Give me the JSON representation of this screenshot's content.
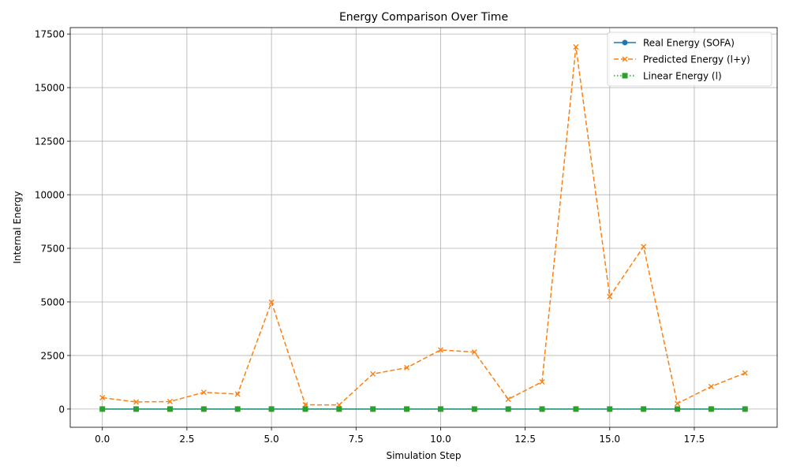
{
  "chart_data": {
    "type": "line",
    "title": "Energy Comparison Over Time",
    "xlabel": "Simulation Step",
    "ylabel": "Internal Energy",
    "xlim": [
      -0.95,
      19.95
    ],
    "ylim": [
      -850,
      17800
    ],
    "xticks": [
      0.0,
      2.5,
      5.0,
      7.5,
      10.0,
      12.5,
      15.0,
      17.5
    ],
    "xtick_labels": [
      "0.0",
      "2.5",
      "5.0",
      "7.5",
      "10.0",
      "12.5",
      "15.0",
      "17.5"
    ],
    "yticks": [
      0,
      2500,
      5000,
      7500,
      10000,
      12500,
      15000,
      17500
    ],
    "ytick_labels": [
      "0",
      "2500",
      "5000",
      "7500",
      "10000",
      "12500",
      "15000",
      "17500"
    ],
    "grid": true,
    "legend_position": "upper right",
    "x": [
      0,
      1,
      2,
      3,
      4,
      5,
      6,
      7,
      8,
      9,
      10,
      11,
      12,
      13,
      14,
      15,
      16,
      17,
      18,
      19
    ],
    "series": [
      {
        "name": "Real Energy (SOFA)",
        "color": "#1f77b4",
        "linestyle": "solid",
        "marker": "circle",
        "values": [
          0,
          0,
          0,
          0,
          0,
          0,
          0,
          0,
          0,
          0,
          0,
          0,
          0,
          0,
          0,
          0,
          0,
          0,
          0,
          0
        ]
      },
      {
        "name": "Predicted Energy (l+y)",
        "color": "#ff7f0e",
        "linestyle": "dashed",
        "marker": "x",
        "values": [
          530,
          330,
          350,
          780,
          700,
          4990,
          200,
          190,
          1640,
          1930,
          2760,
          2660,
          460,
          1270,
          16900,
          5250,
          7580,
          260,
          1050,
          1680
        ]
      },
      {
        "name": "Linear Energy (l)",
        "color": "#2ca02c",
        "linestyle": "dotted",
        "marker": "square",
        "values": [
          0,
          0,
          0,
          0,
          0,
          0,
          0,
          0,
          0,
          0,
          0,
          0,
          0,
          0,
          0,
          0,
          0,
          0,
          0,
          0
        ]
      }
    ]
  }
}
